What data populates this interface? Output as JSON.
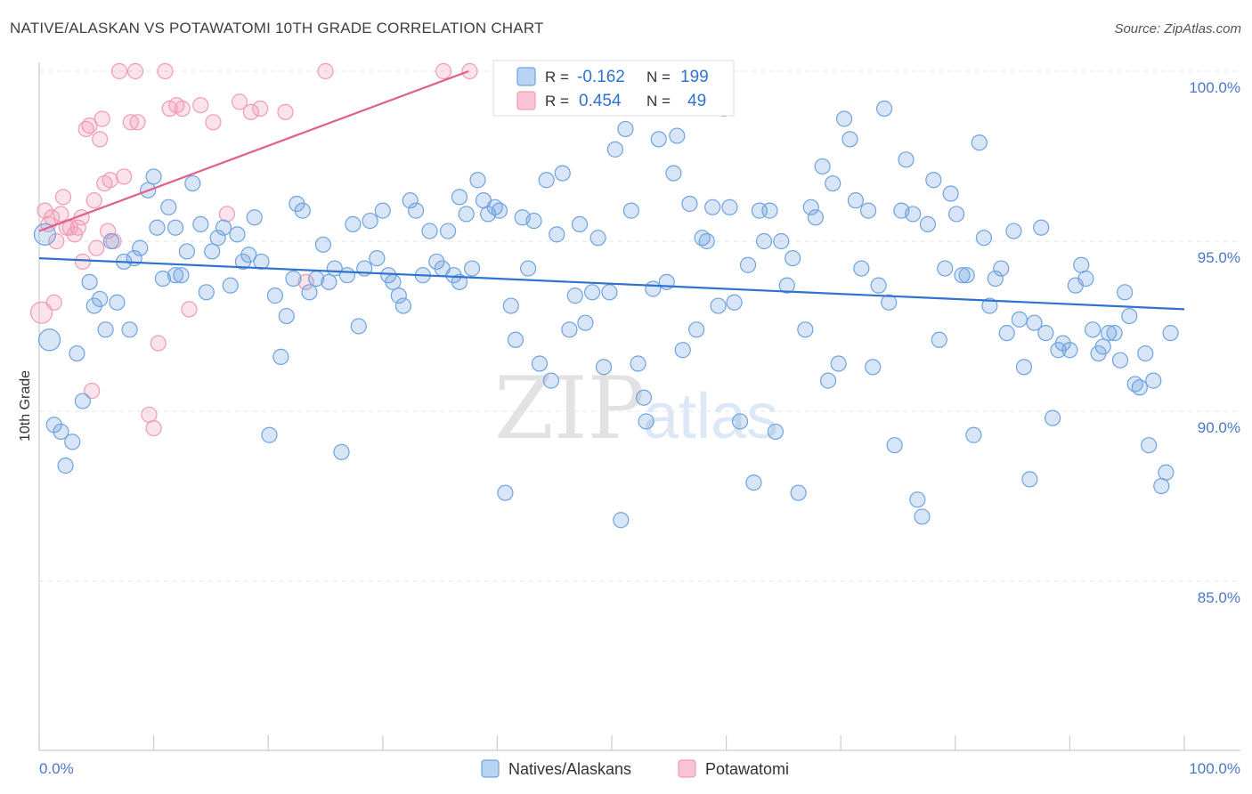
{
  "title": "NATIVE/ALASKAN VS POTAWATOMI 10TH GRADE CORRELATION CHART",
  "source": "Source: ZipAtlas.com",
  "watermark": {
    "zip": "ZIP",
    "atlas": "atlas"
  },
  "colors": {
    "blue": "#6fa3e0",
    "blue_line": "#2f72d0",
    "pink": "#f19ab5",
    "pink_line": "#e0608b",
    "tick_text": "#4a77c6"
  },
  "legend": {
    "r_label": "R =",
    "n_label": "N =",
    "rows": [
      {
        "r": "-0.162",
        "n": "199"
      },
      {
        "r": "0.454",
        "n": "49"
      }
    ]
  },
  "chart_data": {
    "type": "scatter",
    "title": "NATIVE/ALASKAN VS POTAWATOMI 10TH GRADE CORRELATION CHART",
    "ylabel": "10th Grade",
    "xlabel": "",
    "x_tick_labels": [
      "0.0%",
      "100.0%"
    ],
    "y_tick_labels": [
      "85.0%",
      "90.0%",
      "95.0%",
      "100.0%"
    ],
    "y_ticks": [
      85,
      90,
      95,
      100
    ],
    "xlim": [
      0,
      100
    ],
    "ylim": [
      80.5,
      100.5
    ],
    "grid": true,
    "legend_position": "top-center",
    "series": [
      {
        "name": "Natives/Alaskans",
        "color": "#6fa3e0",
        "trend": {
          "x": [
            0,
            100
          ],
          "y": [
            94.5,
            93.0
          ]
        },
        "points": [
          [
            0.5,
            95.2
          ],
          [
            0.9,
            92.1
          ],
          [
            1.3,
            89.6
          ],
          [
            1.9,
            89.4
          ],
          [
            2.3,
            88.4
          ],
          [
            2.9,
            89.1
          ],
          [
            3.3,
            91.7
          ],
          [
            3.8,
            90.3
          ],
          [
            4.4,
            93.8
          ],
          [
            4.8,
            93.1
          ],
          [
            5.3,
            93.3
          ],
          [
            5.8,
            92.4
          ],
          [
            6.3,
            95.0
          ],
          [
            6.8,
            93.2
          ],
          [
            7.4,
            94.4
          ],
          [
            7.9,
            92.4
          ],
          [
            8.3,
            94.5
          ],
          [
            8.8,
            94.8
          ],
          [
            9.5,
            96.5
          ],
          [
            10,
            96.9
          ],
          [
            10.3,
            95.4
          ],
          [
            10.8,
            93.9
          ],
          [
            11.3,
            96.0
          ],
          [
            11.9,
            95.4
          ],
          [
            12.4,
            94.0
          ],
          [
            12.9,
            94.7
          ],
          [
            13.4,
            96.7
          ],
          [
            14.1,
            95.5
          ],
          [
            14.6,
            93.5
          ],
          [
            15.1,
            94.7
          ],
          [
            15.6,
            95.1
          ],
          [
            16.1,
            95.4
          ],
          [
            16.7,
            93.7
          ],
          [
            17.3,
            95.2
          ],
          [
            17.8,
            94.4
          ],
          [
            18.3,
            94.6
          ],
          [
            18.8,
            95.7
          ],
          [
            19.4,
            94.4
          ],
          [
            20.1,
            89.3
          ],
          [
            20.6,
            93.4
          ],
          [
            21.1,
            91.6
          ],
          [
            21.6,
            92.8
          ],
          [
            22.2,
            93.9
          ],
          [
            22.5,
            96.1
          ],
          [
            23,
            95.9
          ],
          [
            23.6,
            93.5
          ],
          [
            24.2,
            93.9
          ],
          [
            24.8,
            94.9
          ],
          [
            25.3,
            93.8
          ],
          [
            25.8,
            94.2
          ],
          [
            26.4,
            88.8
          ],
          [
            26.9,
            94.0
          ],
          [
            27.4,
            95.5
          ],
          [
            27.9,
            92.5
          ],
          [
            28.4,
            94.2
          ],
          [
            28.9,
            95.6
          ],
          [
            29.5,
            94.5
          ],
          [
            30,
            95.9
          ],
          [
            30.5,
            94.0
          ],
          [
            30.9,
            93.8
          ],
          [
            31.4,
            93.4
          ],
          [
            31.8,
            93.1
          ],
          [
            32.4,
            96.2
          ],
          [
            32.9,
            95.9
          ],
          [
            33.5,
            94.0
          ],
          [
            34.1,
            95.3
          ],
          [
            34.7,
            94.4
          ],
          [
            35.2,
            94.2
          ],
          [
            35.7,
            95.3
          ],
          [
            36.2,
            94.0
          ],
          [
            36.7,
            96.3
          ],
          [
            37.3,
            95.8
          ],
          [
            37.8,
            94.2
          ],
          [
            38.3,
            96.8
          ],
          [
            38.8,
            96.2
          ],
          [
            39.2,
            95.8
          ],
          [
            39.8,
            96.0
          ],
          [
            40.2,
            95.9
          ],
          [
            40.7,
            87.6
          ],
          [
            41.2,
            93.1
          ],
          [
            41.6,
            92.1
          ],
          [
            42.2,
            95.7
          ],
          [
            42.7,
            94.2
          ],
          [
            43.2,
            95.6
          ],
          [
            43.7,
            91.4
          ],
          [
            44.3,
            96.8
          ],
          [
            44.7,
            90.9
          ],
          [
            45.2,
            95.2
          ],
          [
            45.7,
            97.0
          ],
          [
            46.3,
            92.4
          ],
          [
            46.8,
            93.4
          ],
          [
            47.2,
            95.5
          ],
          [
            47.7,
            92.6
          ],
          [
            48.3,
            93.5
          ],
          [
            48.8,
            95.1
          ],
          [
            49.3,
            91.3
          ],
          [
            49.8,
            93.5
          ],
          [
            50.3,
            97.7
          ],
          [
            50.8,
            86.8
          ],
          [
            51.2,
            98.3
          ],
          [
            51.7,
            95.9
          ],
          [
            52.3,
            91.4
          ],
          [
            52.8,
            90.4
          ],
          [
            53,
            89.7
          ],
          [
            53.6,
            93.6
          ],
          [
            54.1,
            98.0
          ],
          [
            54.8,
            93.8
          ],
          [
            55.4,
            97.0
          ],
          [
            55.7,
            98.1
          ],
          [
            56.2,
            91.8
          ],
          [
            56.8,
            96.1
          ],
          [
            57.4,
            92.4
          ],
          [
            57.9,
            95.1
          ],
          [
            58.3,
            95.0
          ],
          [
            58.8,
            96.0
          ],
          [
            59.3,
            93.1
          ],
          [
            59.8,
            98.9
          ],
          [
            60.3,
            96.0
          ],
          [
            60.7,
            93.2
          ],
          [
            61.2,
            89.7
          ],
          [
            61.9,
            94.3
          ],
          [
            62.4,
            87.9
          ],
          [
            62.9,
            95.9
          ],
          [
            63.3,
            95.0
          ],
          [
            63.8,
            95.9
          ],
          [
            64.3,
            89.4
          ],
          [
            64.8,
            95.0
          ],
          [
            65.3,
            93.7
          ],
          [
            65.8,
            94.5
          ],
          [
            66.3,
            87.6
          ],
          [
            66.9,
            92.4
          ],
          [
            67.4,
            96.0
          ],
          [
            67.8,
            95.7
          ],
          [
            68.4,
            97.2
          ],
          [
            68.9,
            90.9
          ],
          [
            69.3,
            96.7
          ],
          [
            69.8,
            91.4
          ],
          [
            70.3,
            98.6
          ],
          [
            70.8,
            98.0
          ],
          [
            71.3,
            96.2
          ],
          [
            71.8,
            94.2
          ],
          [
            72.4,
            95.9
          ],
          [
            72.8,
            91.3
          ],
          [
            73.3,
            93.7
          ],
          [
            73.8,
            98.9
          ],
          [
            74.2,
            93.2
          ],
          [
            74.7,
            89.0
          ],
          [
            75.3,
            95.9
          ],
          [
            75.7,
            97.4
          ],
          [
            76.3,
            95.8
          ],
          [
            76.7,
            87.4
          ],
          [
            77.1,
            86.9
          ],
          [
            77.6,
            95.5
          ],
          [
            78.1,
            96.8
          ],
          [
            78.6,
            92.1
          ],
          [
            79.1,
            94.2
          ],
          [
            79.6,
            96.4
          ],
          [
            80.1,
            95.8
          ],
          [
            80.6,
            94.0
          ],
          [
            81,
            94.0
          ],
          [
            81.6,
            89.3
          ],
          [
            82.1,
            97.9
          ],
          [
            82.5,
            95.1
          ],
          [
            83,
            93.1
          ],
          [
            83.5,
            93.9
          ],
          [
            84,
            94.2
          ],
          [
            84.5,
            92.3
          ],
          [
            85.1,
            95.3
          ],
          [
            85.6,
            92.7
          ],
          [
            86,
            91.3
          ],
          [
            86.5,
            88.0
          ],
          [
            86.9,
            92.6
          ],
          [
            87.5,
            95.4
          ],
          [
            87.9,
            92.3
          ],
          [
            88.5,
            89.8
          ],
          [
            89,
            91.8
          ],
          [
            89.4,
            92.0
          ],
          [
            90,
            91.8
          ],
          [
            90.5,
            93.7
          ],
          [
            91,
            94.3
          ],
          [
            91.4,
            93.9
          ],
          [
            92,
            92.4
          ],
          [
            92.5,
            91.7
          ],
          [
            92.9,
            91.9
          ],
          [
            93.4,
            92.3
          ],
          [
            93.9,
            92.3
          ],
          [
            94.4,
            91.5
          ],
          [
            94.8,
            93.5
          ],
          [
            95.2,
            92.8
          ],
          [
            95.7,
            90.8
          ],
          [
            96.1,
            90.7
          ],
          [
            96.6,
            91.7
          ],
          [
            96.9,
            89.0
          ],
          [
            97.3,
            90.9
          ],
          [
            98,
            87.8
          ],
          [
            98.4,
            88.2
          ],
          [
            98.8,
            92.3
          ],
          [
            11.9,
            94.0
          ],
          [
            36.7,
            93.8
          ]
        ]
      },
      {
        "name": "Potawatomi",
        "color": "#f19ab5",
        "trend": {
          "x": [
            0,
            37.5
          ],
          "y": [
            95.3,
            100.0
          ]
        },
        "points": [
          [
            0.2,
            92.9
          ],
          [
            0.5,
            95.9
          ],
          [
            0.8,
            95.5
          ],
          [
            1.1,
            95.7
          ],
          [
            1.3,
            93.2
          ],
          [
            1.5,
            95.0
          ],
          [
            1.9,
            95.8
          ],
          [
            2.1,
            96.3
          ],
          [
            2.4,
            95.4
          ],
          [
            2.7,
            95.4
          ],
          [
            3.1,
            95.2
          ],
          [
            3.4,
            95.4
          ],
          [
            3.7,
            95.7
          ],
          [
            3.8,
            94.4
          ],
          [
            4.1,
            98.3
          ],
          [
            4.4,
            98.4
          ],
          [
            4.6,
            90.6
          ],
          [
            4.8,
            96.2
          ],
          [
            5,
            94.8
          ],
          [
            5.3,
            98.0
          ],
          [
            5.5,
            98.6
          ],
          [
            5.7,
            96.7
          ],
          [
            6,
            95.3
          ],
          [
            6.2,
            96.8
          ],
          [
            6.5,
            95.0
          ],
          [
            7,
            100
          ],
          [
            7.4,
            96.9
          ],
          [
            8,
            98.5
          ],
          [
            8.4,
            100
          ],
          [
            8.6,
            98.5
          ],
          [
            9.6,
            89.9
          ],
          [
            10,
            89.5
          ],
          [
            10.4,
            92.0
          ],
          [
            11,
            100
          ],
          [
            11.4,
            98.9
          ],
          [
            12,
            99.0
          ],
          [
            12.5,
            98.9
          ],
          [
            13.1,
            93.0
          ],
          [
            14.1,
            99.0
          ],
          [
            15.2,
            98.5
          ],
          [
            16.4,
            95.8
          ],
          [
            17.5,
            99.1
          ],
          [
            18.5,
            98.8
          ],
          [
            19.3,
            98.9
          ],
          [
            21.5,
            98.8
          ],
          [
            23.3,
            93.8
          ],
          [
            25,
            100
          ],
          [
            35.3,
            100
          ],
          [
            37.6,
            100
          ]
        ]
      }
    ]
  }
}
